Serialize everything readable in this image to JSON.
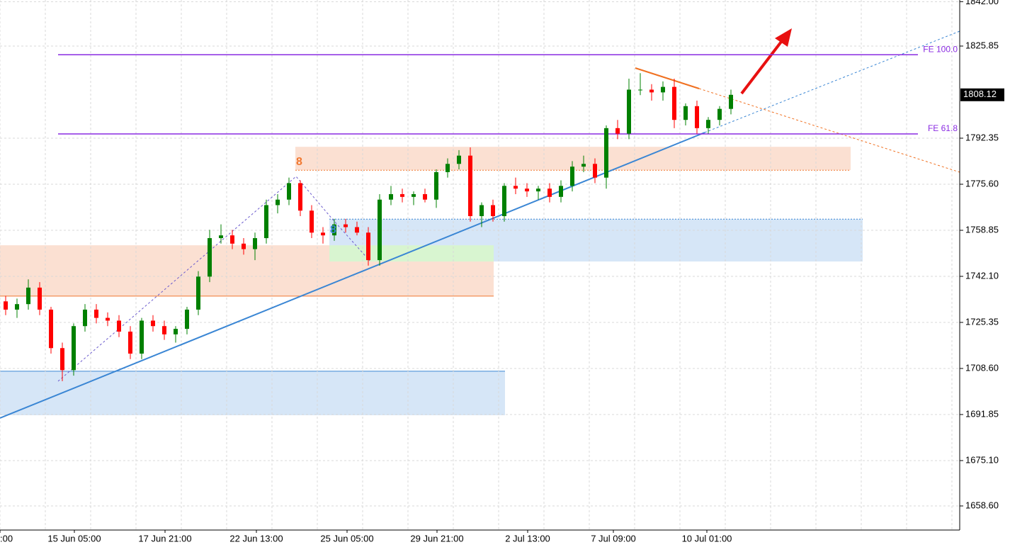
{
  "chart_data": {
    "type": "candlestick",
    "x_labels": [
      ":00",
      "15 Jun 05:00",
      "17 Jun 21:00",
      "22 Jun 13:00",
      "25 Jun 05:00",
      "29 Jun 21:00",
      "2 Jul 13:00",
      "7 Jul 09:00",
      "10 Jul 01:00"
    ],
    "open": [
      1733,
      1730,
      1732,
      1738,
      1730,
      1716,
      1708,
      1724,
      1730,
      1727,
      1726,
      1722,
      1714,
      1726,
      1724,
      1721,
      1723,
      1730,
      1742,
      1756,
      1757,
      1754,
      1752,
      1756,
      1768,
      1770,
      1776,
      1766,
      1758,
      1757,
      1761,
      1760,
      1758,
      1748,
      1770,
      1772,
      1771,
      1772,
      1770,
      1780,
      1783,
      1786,
      1764,
      1768,
      1764,
      1775,
      1774,
      1773,
      1774,
      1771,
      1775,
      1782,
      1783,
      1778,
      1796,
      1794,
      1810,
      1810,
      1809,
      1811,
      1799,
      1804,
      1796,
      1799,
      1803
    ],
    "high": [
      1735,
      1734,
      1741,
      1740,
      1731,
      1718,
      1725,
      1732,
      1732,
      1729,
      1728,
      1724,
      1727,
      1728,
      1726,
      1724,
      1731,
      1744,
      1759,
      1761,
      1759,
      1756,
      1758,
      1770,
      1772,
      1778,
      1777,
      1768,
      1760,
      1763,
      1763,
      1762,
      1760,
      1772,
      1775,
      1774,
      1773,
      1774,
      1781,
      1785,
      1788,
      1789,
      1769,
      1770,
      1776,
      1778,
      1776,
      1775,
      1776,
      1777,
      1784,
      1786,
      1785,
      1797,
      1799,
      1814,
      1816,
      1812,
      1813,
      1814,
      1805,
      1806,
      1800,
      1804,
      1810
    ],
    "low": [
      1728,
      1727,
      1730,
      1728,
      1714,
      1704,
      1706,
      1722,
      1725,
      1724,
      1720,
      1712,
      1712,
      1722,
      1719,
      1718,
      1721,
      1728,
      1740,
      1754,
      1752,
      1750,
      1748,
      1754,
      1765,
      1768,
      1764,
      1756,
      1754,
      1755,
      1758,
      1757,
      1746,
      1746,
      1768,
      1769,
      1768,
      1769,
      1767,
      1778,
      1781,
      1762,
      1760,
      1762,
      1762,
      1772,
      1771,
      1770,
      1769,
      1769,
      1773,
      1780,
      1776,
      1774,
      1792,
      1792,
      1808,
      1806,
      1806,
      1796,
      1797,
      1794,
      1794,
      1797,
      1801
    ],
    "close": [
      1730,
      1732,
      1738,
      1730,
      1716,
      1708,
      1724,
      1730,
      1727,
      1726,
      1722,
      1714,
      1726,
      1724,
      1721,
      1723,
      1730,
      1742,
      1756,
      1757,
      1754,
      1752,
      1756,
      1768,
      1770,
      1776,
      1766,
      1758,
      1757,
      1761,
      1760,
      1758,
      1748,
      1770,
      1772,
      1771,
      1772,
      1770,
      1780,
      1783,
      1786,
      1764,
      1768,
      1764,
      1775,
      1774,
      1773,
      1774,
      1771,
      1775,
      1782,
      1783,
      1778,
      1796,
      1794,
      1810,
      1810,
      1809,
      1811,
      1799,
      1804,
      1796,
      1799,
      1803,
      1808.12
    ],
    "up_color": "#008000",
    "down_color": "#ff0000",
    "current_price": 1808.12,
    "ylim": [
      1649.84,
      1842.6
    ],
    "yticks": [
      {
        "value": 1842,
        "label": "1842.00"
      },
      1825.85,
      {
        "value": 1792.35,
        "label": "1792.35"
      },
      {
        "value": 1775.6,
        "label": "1775.60"
      },
      1758.85,
      {
        "value": 1742.1,
        "label": "1742.10"
      },
      1725.35,
      {
        "value": 1708.6,
        "label": "1708.60"
      },
      1691.85,
      {
        "value": 1675.1,
        "label": "1675.10"
      },
      {
        "value": 1658.6,
        "label": "1658.60"
      }
    ],
    "grid": true,
    "zones": [
      {
        "top": 1753.4,
        "bottom": 1734.9,
        "color": "#fbe0d2"
      },
      {
        "top": 1707.6,
        "bottom": 1691.6,
        "color": "#d6e6f7"
      },
      {
        "top": 1789.2,
        "bottom": 1780.7,
        "color": "#fbe0d2"
      },
      {
        "top": 1762.9,
        "bottom": 1747.5,
        "color": "#d6e6f7"
      },
      {
        "top": 1753.4,
        "bottom": 1747.5,
        "color": "#d8f5d0"
      }
    ],
    "fe_levels": [
      {
        "label": "FE 100.0",
        "value": 1822.7
      },
      {
        "label": "FE 61.8",
        "value": 1793.9
      }
    ],
    "pattern_labels": [
      "8",
      "8"
    ]
  }
}
